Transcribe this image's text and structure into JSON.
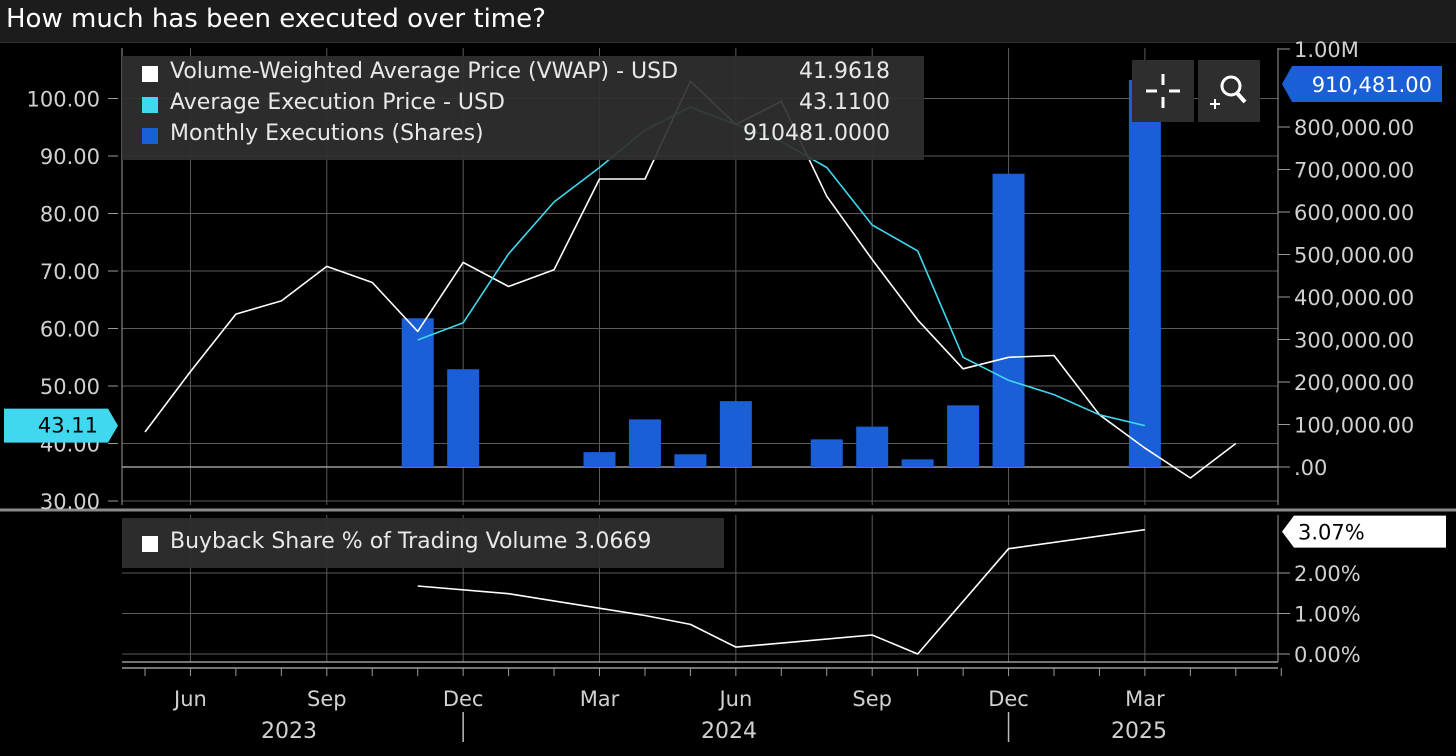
{
  "title": "How much has been executed over time?",
  "colors": {
    "vwap": "#ffffff",
    "avg_exec": "#3fd8ee",
    "bars": "#1a5fd6",
    "grid": "#5a5a5a",
    "axis_text": "#d0d0d0",
    "background": "#000000"
  },
  "icons": {
    "crosshair": "crosshair-icon",
    "zoom": "zoom-in-icon"
  },
  "top_legend": [
    {
      "label": "Volume-Weighted Average Price (VWAP) - USD",
      "value": "41.9618",
      "color": "#ffffff"
    },
    {
      "label": "Average Execution Price - USD",
      "value": "43.1100",
      "color": "#3fd8ee"
    },
    {
      "label": "Monthly Executions (Shares)",
      "value": "910481.0000",
      "color": "#1a5fd6"
    }
  ],
  "bottom_legend": {
    "label": "Buyback Share % of Trading Volume 3.0669",
    "color": "#ffffff"
  },
  "flags": {
    "left_avg_exec": "43.11",
    "right_executions": "910,481.00",
    "right_buyback": "3.07%"
  },
  "right_top_max_label": "1.00M",
  "x_axis": {
    "months": [
      "Jun",
      "Sep",
      "Dec",
      "Mar",
      "Jun",
      "Sep",
      "Dec",
      "Mar"
    ],
    "years": [
      "2023",
      "2024",
      "2025"
    ]
  },
  "chart_data": [
    {
      "type": "line+bar",
      "title": "How much has been executed over time?",
      "x": [
        "2023-04",
        "2023-05",
        "2023-06",
        "2023-07",
        "2023-08",
        "2023-09",
        "2023-10",
        "2023-11",
        "2023-12",
        "2024-01",
        "2024-02",
        "2024-03",
        "2024-04",
        "2024-05",
        "2024-06",
        "2024-07",
        "2024-08",
        "2024-09",
        "2024-10",
        "2024-11",
        "2024-12",
        "2025-01",
        "2025-02",
        "2025-03",
        "2025-04",
        "2025-05"
      ],
      "y_left": {
        "ticks": [
          "30.00",
          "40.00",
          "50.00",
          "60.00",
          "70.00",
          "80.00",
          "90.00",
          "100.00"
        ],
        "range": [
          30,
          104
        ]
      },
      "y_right": {
        "ticks": [
          ".00",
          "100,000.00",
          "200,000.00",
          "300,000.00",
          "400,000.00",
          "500,000.00",
          "600,000.00",
          "700,000.00",
          "800,000.00",
          "1.00M"
        ],
        "range": [
          -85000,
          1000000
        ]
      },
      "series": [
        {
          "name": "Volume-Weighted Average Price (VWAP) - USD",
          "axis": "left",
          "kind": "line",
          "values": [
            42.0,
            52.5,
            62.5,
            64.8,
            70.8,
            68.0,
            59.5,
            71.5,
            67.3,
            70.2,
            86.0,
            86.0,
            103.0,
            95.5,
            99.5,
            83.0,
            72.0,
            61.5,
            53.0,
            55.0,
            55.3,
            45.0,
            39.2,
            34.0,
            40.0,
            null
          ]
        },
        {
          "name": "Average Execution Price - USD",
          "axis": "left",
          "kind": "line",
          "values": [
            null,
            null,
            null,
            null,
            null,
            null,
            58.0,
            61.0,
            73.0,
            82.0,
            88.0,
            94.5,
            98.5,
            95.5,
            92.5,
            88.0,
            78.0,
            73.5,
            55.0,
            51.0,
            48.5,
            45.0,
            43.11,
            null,
            null,
            null
          ]
        },
        {
          "name": "Monthly Executions (Shares)",
          "axis": "right",
          "kind": "bar",
          "values": [
            0,
            0,
            0,
            0,
            0,
            0,
            350000,
            230000,
            0,
            0,
            35000,
            112000,
            30000,
            155000,
            0,
            65000,
            95000,
            18000,
            145000,
            690000,
            0,
            0,
            910481,
            0,
            0,
            0
          ]
        }
      ]
    },
    {
      "type": "line",
      "x": [
        "2023-04",
        "2023-05",
        "2023-06",
        "2023-07",
        "2023-08",
        "2023-09",
        "2023-10",
        "2023-11",
        "2023-12",
        "2024-01",
        "2024-02",
        "2024-03",
        "2024-04",
        "2024-05",
        "2024-06",
        "2024-07",
        "2024-08",
        "2024-09",
        "2024-10",
        "2024-11",
        "2024-12",
        "2025-01",
        "2025-02",
        "2025-03",
        "2025-04",
        "2025-05"
      ],
      "y_right": {
        "ticks": [
          "0.00%",
          "1.00%",
          "2.00%",
          "3.07%"
        ],
        "range": [
          0,
          3.07
        ]
      },
      "series": [
        {
          "name": "Buyback Share % of Trading Volume",
          "axis": "right",
          "kind": "line",
          "values": [
            null,
            null,
            null,
            null,
            null,
            null,
            1.68,
            null,
            1.49,
            null,
            null,
            0.95,
            0.73,
            0.17,
            null,
            null,
            0.47,
            0.0,
            null,
            2.6,
            null,
            null,
            3.07,
            null,
            null,
            null
          ]
        }
      ]
    }
  ]
}
